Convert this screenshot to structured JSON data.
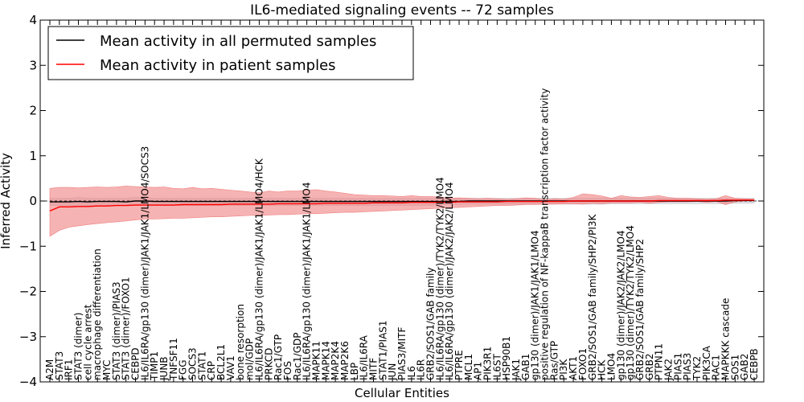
{
  "chart_data": {
    "type": "line",
    "title": "IL6-mediated signaling events -- 72 samples",
    "xlabel": "Cellular Entities",
    "ylabel": "Inferred Activity",
    "ylim": [
      -4,
      4
    ],
    "yticks": [
      "−4",
      "−3",
      "−2",
      "−1",
      "0",
      "1",
      "2",
      "3",
      "4"
    ],
    "grid": false,
    "legend_position": "top-left",
    "categories": [
      "A2M",
      "STAT3",
      "IRF1",
      "STAT3 (dimer)",
      "cell cycle arrest",
      "macrophage differentiation",
      "MYC",
      "STAT3 (dimer)/PIAS3",
      "STAT3 (dimer)/FOXO1",
      "CEBPD",
      "IL6/IL6RA/gp130 (dimer)/JAK1/JAK1/LMO4/SOCS3",
      "TIMP1",
      "JUNB",
      "TNFSF11",
      "FGG",
      "SOCS3",
      "STAT1",
      "CRP",
      "BCL2L1",
      "VAV1",
      "bone resorption",
      "mol/GDP",
      "IL6/IL6RA/gp130 (dimer)/JAK1/JAK1/LMO4/HCK",
      "PRKCD",
      "Rac1/GTP",
      "FOS",
      "Rac1/GDP",
      "IL6/IL6RA/gp130 (dimer)/JAK1/JAK1/LMO4",
      "MAPK11",
      "MAPK14",
      "MAP2K4",
      "MAP2K6",
      "LBP",
      "IL6/IL6RA",
      "MITF",
      "STAT1/PIAS1",
      "JUN",
      "PIAS3/MITF",
      "IL6",
      "IL6R",
      "GRB2/SOS1/GAB family",
      "IL6/IL6RA/gp130 (dimer)/TYK2/TYK2/LMO4",
      "IL6/IL6RA/gp130 (dimer)/JAK2/JAK2/LMO4",
      "PTPRE",
      "MCL1",
      "AP1",
      "PIK3R1",
      "IL6ST",
      "HSP90B1",
      "JAK1",
      "GAB1",
      "gp130 (dimer)/JAK1/JAK1/LMO4",
      "positive regulation of NF-kappaB transcription factor activity",
      "Ras/GTP",
      "PI3K",
      "AKT1",
      "FOXO1",
      "GRB2/SOS1/GAB family/SHP2/PI3K",
      "HCK",
      "LMO4",
      "gp130 (dimer)/JAK2/JAK2/LMO4",
      "gp130 (dimer)/TYK2/TYK2/LMO4",
      "GRB2/SOS1/GAB family/SHP2",
      "GRB2",
      "PTPN11",
      "JAK2",
      "PIAS1",
      "PIAS3",
      "TYK2",
      "PIK3CA",
      "RAC1",
      "MAPKKK cascade",
      "SOS1",
      "GAB2",
      "CEBPB"
    ],
    "series": [
      {
        "name": "Mean activity in all permuted samples",
        "color": "#000000",
        "band_color": "#c8c8d0",
        "values": [
          -0.02,
          -0.02,
          -0.02,
          -0.01,
          -0.02,
          -0.01,
          -0.01,
          -0.01,
          -0.02,
          0.0,
          0.0,
          -0.01,
          -0.01,
          -0.01,
          -0.01,
          -0.01,
          -0.01,
          -0.01,
          -0.01,
          -0.01,
          -0.01,
          -0.01,
          -0.01,
          -0.01,
          -0.01,
          -0.01,
          -0.01,
          -0.01,
          -0.01,
          -0.01,
          -0.01,
          -0.01,
          -0.01,
          -0.01,
          -0.01,
          -0.01,
          -0.01,
          -0.01,
          -0.01,
          -0.01,
          -0.01,
          -0.01,
          -0.01,
          -0.01,
          0.0,
          0.0,
          0.0,
          0.0,
          0.0,
          0.0,
          0.0,
          0.0,
          0.0,
          0.0,
          0.0,
          0.0,
          0.0,
          0.0,
          0.0,
          0.0,
          0.0,
          0.0,
          0.0,
          0.0,
          0.0,
          0.0,
          0.0,
          0.0,
          0.0,
          0.0,
          0.0,
          0.0,
          0.01,
          0.01,
          0.01
        ],
        "lower": [
          -0.1,
          -0.1,
          -0.1,
          -0.12,
          -0.1,
          -0.1,
          -0.1,
          -0.1,
          -0.1,
          -0.08,
          -0.08,
          -0.1,
          -0.1,
          -0.1,
          -0.1,
          -0.1,
          -0.1,
          -0.1,
          -0.1,
          -0.1,
          -0.1,
          -0.1,
          -0.1,
          -0.1,
          -0.1,
          -0.1,
          -0.1,
          -0.1,
          -0.1,
          -0.1,
          -0.1,
          -0.1,
          -0.1,
          -0.1,
          -0.1,
          -0.1,
          -0.1,
          -0.1,
          -0.1,
          -0.1,
          -0.1,
          -0.08,
          -0.08,
          -0.08,
          -0.07,
          -0.07,
          -0.07,
          -0.07,
          -0.07,
          -0.07,
          -0.07,
          -0.07,
          -0.07,
          -0.07,
          -0.07,
          -0.07,
          -0.07,
          -0.07,
          -0.07,
          -0.06,
          -0.06,
          -0.06,
          -0.06,
          -0.06,
          -0.06,
          -0.06,
          -0.06,
          -0.06,
          -0.06,
          -0.06,
          -0.06,
          -0.06,
          -0.05,
          -0.05,
          -0.05
        ],
        "upper": [
          0.06,
          0.06,
          0.06,
          0.08,
          0.06,
          0.06,
          0.06,
          0.06,
          0.06,
          0.08,
          0.08,
          0.06,
          0.06,
          0.06,
          0.06,
          0.06,
          0.06,
          0.06,
          0.06,
          0.06,
          0.06,
          0.06,
          0.06,
          0.06,
          0.06,
          0.06,
          0.06,
          0.06,
          0.06,
          0.06,
          0.06,
          0.06,
          0.06,
          0.06,
          0.06,
          0.06,
          0.06,
          0.06,
          0.06,
          0.06,
          0.06,
          0.06,
          0.06,
          0.06,
          0.06,
          0.06,
          0.06,
          0.06,
          0.06,
          0.06,
          0.06,
          0.06,
          0.06,
          0.06,
          0.06,
          0.06,
          0.06,
          0.06,
          0.06,
          0.06,
          0.06,
          0.06,
          0.06,
          0.06,
          0.06,
          0.06,
          0.06,
          0.06,
          0.06,
          0.06,
          0.06,
          0.06,
          0.06,
          0.06,
          0.06
        ]
      },
      {
        "name": "Mean activity in patient samples",
        "color": "#ff0000",
        "band_color": "#f08080",
        "values": [
          -0.22,
          -0.13,
          -0.13,
          -0.12,
          -0.12,
          -0.11,
          -0.11,
          -0.1,
          -0.1,
          -0.09,
          -0.09,
          -0.09,
          -0.09,
          -0.09,
          -0.08,
          -0.08,
          -0.08,
          -0.08,
          -0.08,
          -0.07,
          -0.07,
          -0.07,
          -0.07,
          -0.07,
          -0.06,
          -0.06,
          -0.06,
          -0.06,
          -0.06,
          -0.05,
          -0.05,
          -0.05,
          -0.05,
          -0.05,
          -0.04,
          -0.04,
          -0.04,
          -0.04,
          -0.03,
          -0.03,
          -0.03,
          -0.03,
          -0.03,
          -0.02,
          -0.02,
          -0.02,
          -0.02,
          -0.02,
          -0.01,
          -0.01,
          -0.01,
          -0.01,
          -0.01,
          -0.01,
          -0.01,
          0.0,
          0.0,
          0.0,
          0.0,
          0.0,
          0.0,
          0.0,
          0.0,
          0.0,
          0.01,
          0.01,
          0.01,
          0.01,
          0.01,
          0.01,
          0.01,
          0.02,
          0.02,
          0.02,
          0.02
        ],
        "lower": [
          -0.78,
          -0.65,
          -0.58,
          -0.55,
          -0.52,
          -0.5,
          -0.48,
          -0.46,
          -0.44,
          -0.42,
          -0.4,
          -0.4,
          -0.39,
          -0.38,
          -0.38,
          -0.37,
          -0.36,
          -0.35,
          -0.35,
          -0.34,
          -0.33,
          -0.32,
          -0.32,
          -0.31,
          -0.3,
          -0.3,
          -0.29,
          -0.28,
          -0.28,
          -0.27,
          -0.26,
          -0.25,
          -0.25,
          -0.24,
          -0.23,
          -0.22,
          -0.21,
          -0.2,
          -0.19,
          -0.18,
          -0.17,
          -0.16,
          -0.15,
          -0.14,
          -0.13,
          -0.12,
          -0.11,
          -0.1,
          -0.1,
          -0.09,
          -0.08,
          -0.08,
          -0.07,
          -0.07,
          -0.06,
          -0.06,
          -0.07,
          -0.05,
          -0.06,
          -0.04,
          -0.04,
          -0.04,
          -0.03,
          -0.05,
          -0.03,
          -0.02,
          -0.02,
          -0.02,
          -0.01,
          -0.03,
          -0.01,
          -0.08,
          -0.02,
          0.0,
          0.0
        ],
        "upper": [
          0.28,
          0.3,
          0.3,
          0.29,
          0.3,
          0.31,
          0.3,
          0.31,
          0.33,
          0.32,
          0.31,
          0.3,
          0.31,
          0.28,
          0.27,
          0.3,
          0.27,
          0.28,
          0.26,
          0.24,
          0.22,
          0.2,
          0.18,
          0.22,
          0.2,
          0.22,
          0.22,
          0.24,
          0.25,
          0.22,
          0.2,
          0.17,
          0.14,
          0.13,
          0.12,
          0.12,
          0.11,
          0.1,
          0.12,
          0.1,
          0.1,
          0.09,
          0.06,
          0.07,
          0.06,
          0.05,
          0.06,
          0.05,
          0.04,
          0.05,
          0.07,
          0.06,
          0.03,
          0.05,
          0.04,
          0.08,
          0.16,
          0.14,
          0.11,
          0.06,
          0.12,
          0.09,
          0.08,
          0.1,
          0.12,
          0.08,
          0.06,
          0.06,
          0.05,
          0.04,
          0.05,
          0.12,
          0.06,
          0.05,
          0.04
        ]
      }
    ]
  }
}
